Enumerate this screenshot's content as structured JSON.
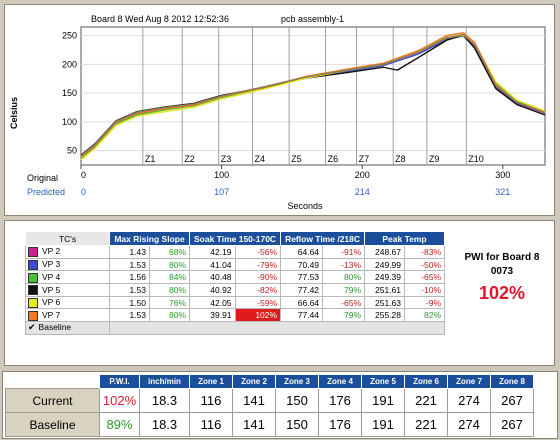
{
  "chart_data": {
    "type": "line",
    "title": "Board 8 Wed Aug 8 2012 12:52:36",
    "subtitle": "pcb assembly-1",
    "ylabel": "Celsius",
    "xlabel": "Seconds",
    "ylim": [
      25,
      265
    ],
    "xlim": [
      0,
      330
    ],
    "y_ticks": [
      50,
      100,
      150,
      200,
      250
    ],
    "x_ticks_original": [
      0,
      100,
      200,
      300
    ],
    "x_ticks_predicted": [
      "0",
      "107",
      "214",
      "321"
    ],
    "x_row_labels": [
      "Original",
      "Predicted"
    ],
    "zones": [
      {
        "label": "Z1",
        "x": 44
      },
      {
        "label": "Z2",
        "x": 72
      },
      {
        "label": "Z3",
        "x": 98
      },
      {
        "label": "Z4",
        "x": 122
      },
      {
        "label": "Z5",
        "x": 148
      },
      {
        "label": "Z6",
        "x": 174
      },
      {
        "label": "Z7",
        "x": 196
      },
      {
        "label": "Z8",
        "x": 222
      },
      {
        "label": "Z9",
        "x": 246
      },
      {
        "label": "Z10",
        "x": 274
      }
    ],
    "series": [
      {
        "name": "VP 2",
        "color": "#c8258f",
        "x": [
          0,
          10,
          25,
          40,
          60,
          80,
          100,
          130,
          160,
          190,
          215,
          240,
          260,
          272,
          280,
          295,
          310,
          330
        ],
        "values": [
          40,
          60,
          100,
          116,
          124,
          130,
          145,
          160,
          178,
          190,
          200,
          220,
          245,
          249,
          230,
          160,
          132,
          115
        ]
      },
      {
        "name": "VP 3",
        "color": "#3a4fd0",
        "x": [
          0,
          10,
          25,
          40,
          60,
          80,
          100,
          130,
          160,
          190,
          215,
          240,
          260,
          272,
          280,
          295,
          310,
          330
        ],
        "values": [
          38,
          58,
          98,
          113,
          122,
          128,
          143,
          158,
          176,
          188,
          198,
          218,
          243,
          250,
          232,
          162,
          133,
          116
        ]
      },
      {
        "name": "VP 4",
        "color": "#4fbf3a",
        "x": [
          0,
          10,
          25,
          40,
          60,
          80,
          100,
          130,
          160,
          190,
          215,
          240,
          260,
          272,
          280,
          295,
          310,
          330
        ],
        "values": [
          36,
          55,
          96,
          112,
          121,
          128,
          142,
          158,
          177,
          190,
          201,
          222,
          247,
          249,
          235,
          168,
          136,
          118
        ]
      },
      {
        "name": "VP 5",
        "color": "#111111",
        "x": [
          0,
          10,
          25,
          40,
          60,
          80,
          100,
          130,
          160,
          190,
          215,
          225,
          240,
          260,
          272,
          280,
          295,
          310,
          330
        ],
        "values": [
          42,
          62,
          102,
          118,
          126,
          132,
          146,
          160,
          176,
          186,
          195,
          190,
          212,
          242,
          251,
          228,
          158,
          130,
          112
        ]
      },
      {
        "name": "VP 6",
        "color": "#e8e820",
        "x": [
          0,
          10,
          25,
          40,
          60,
          80,
          100,
          130,
          160,
          190,
          215,
          240,
          260,
          272,
          280,
          295,
          310,
          330
        ],
        "values": [
          34,
          54,
          94,
          110,
          118,
          125,
          140,
          157,
          176,
          190,
          200,
          221,
          246,
          251,
          236,
          170,
          138,
          119
        ]
      },
      {
        "name": "VP 7",
        "color": "#f07a20",
        "x": [
          0,
          10,
          25,
          40,
          60,
          80,
          100,
          130,
          160,
          190,
          215,
          240,
          260,
          272,
          280,
          295,
          310,
          330
        ],
        "values": [
          39,
          59,
          99,
          115,
          123,
          129,
          144,
          160,
          179,
          192,
          202,
          224,
          250,
          255,
          238,
          165,
          134,
          117
        ]
      },
      {
        "name": "Baseline",
        "color": "#8c7c5a",
        "x": [
          0,
          10,
          25,
          40,
          60,
          80,
          100,
          130,
          160,
          190,
          215,
          240,
          260,
          272,
          280,
          295,
          310,
          330
        ],
        "values": [
          41,
          61,
          101,
          117,
          125,
          131,
          145,
          161,
          178,
          190,
          200,
          221,
          246,
          252,
          234,
          163,
          134,
          116
        ]
      }
    ]
  },
  "tc_table": {
    "headers": [
      "TC's",
      "Max Rising Slope",
      "Soak Time 150-170C",
      "Reflow Time /218C",
      "Peak Temp"
    ],
    "rows": [
      {
        "name": "VP 2",
        "color": "#c8258f",
        "slope": "1.43",
        "slope_pct": "68%",
        "soak": "42.19",
        "soak_pct": "-56%",
        "reflow": "64.64",
        "reflow_pct": "-91%",
        "peak": "248.67",
        "peak_pct": "-83%"
      },
      {
        "name": "VP 3",
        "color": "#3a4fd0",
        "slope": "1.53",
        "slope_pct": "80%",
        "soak": "41.04",
        "soak_pct": "-79%",
        "reflow": "70.49",
        "reflow_pct": "-13%",
        "peak": "249.99",
        "peak_pct": "-50%"
      },
      {
        "name": "VP 4",
        "color": "#4fbf3a",
        "slope": "1.56",
        "slope_pct": "84%",
        "soak": "40.48",
        "soak_pct": "-90%",
        "reflow": "77.53",
        "reflow_pct": "80%",
        "peak": "249.39",
        "peak_pct": "-65%"
      },
      {
        "name": "VP 5",
        "color": "#111111",
        "slope": "1.53",
        "slope_pct": "80%",
        "soak": "40.92",
        "soak_pct": "-82%",
        "reflow": "77.42",
        "reflow_pct": "79%",
        "peak": "251.61",
        "peak_pct": "-10%"
      },
      {
        "name": "VP 6",
        "color": "#e8e820",
        "slope": "1.50",
        "slope_pct": "76%",
        "soak": "42.05",
        "soak_pct": "-59%",
        "reflow": "66.64",
        "reflow_pct": "-65%",
        "peak": "251.63",
        "peak_pct": "-9%"
      },
      {
        "name": "VP 7",
        "color": "#f07a20",
        "slope": "1.53",
        "slope_pct": "80%",
        "soak": "39.91",
        "soak_pct": "102%",
        "reflow": "77.44",
        "reflow_pct": "79%",
        "peak": "255.28",
        "peak_pct": "82%"
      }
    ],
    "baseline_label": "Baseline",
    "checkmark": "✔"
  },
  "pwi": {
    "title_line1": "PWI for Board 8",
    "title_line2": "0073",
    "value": "102%"
  },
  "bottom_table": {
    "headers": [
      "P.W.I.",
      "inch/min",
      "Zone 1",
      "Zone 2",
      "Zone 3",
      "Zone 4",
      "Zone 5",
      "Zone 6",
      "Zone 7",
      "Zone 8"
    ],
    "rows": [
      {
        "label": "Current",
        "pwi": "102%",
        "inch": "18.3",
        "zones": [
          "116",
          "141",
          "150",
          "176",
          "191",
          "221",
          "274",
          "267"
        ]
      },
      {
        "label": "Baseline",
        "pwi": "89%",
        "inch": "18.3",
        "zones": [
          "116",
          "141",
          "150",
          "176",
          "191",
          "221",
          "274",
          "267"
        ]
      }
    ]
  }
}
